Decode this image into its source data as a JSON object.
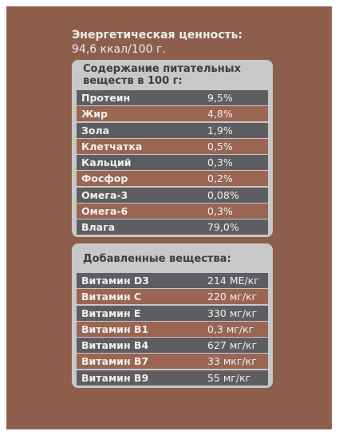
{
  "energy": {
    "title": "Энергетическая ценность:",
    "value": "94,6 ккал/100 г."
  },
  "nutrients": {
    "title": "Содержание питательных веществ в 100 г:",
    "rows": [
      {
        "name": "Протеин",
        "value": "9,5%"
      },
      {
        "name": "Жир",
        "value": "4,8%"
      },
      {
        "name": "Зола",
        "value": "1,9%"
      },
      {
        "name": "Клетчатка",
        "value": "0,5%"
      },
      {
        "name": "Кальций",
        "value": "0,3%"
      },
      {
        "name": "Фосфор",
        "value": "0,2%"
      },
      {
        "name": "Омега-3",
        "value": "0,08%"
      },
      {
        "name": "Омега-6",
        "value": "0,3%"
      },
      {
        "name": "Влага",
        "value": "79,0%"
      }
    ]
  },
  "additives": {
    "title": "Добавленные вещества:",
    "rows": [
      {
        "name": "Витамин D3",
        "value": "214 МЕ/кг"
      },
      {
        "name": "Витамин C",
        "value": "220 мг/кг"
      },
      {
        "name": "Витамин E",
        "value": "330 мг/кг"
      },
      {
        "name": "Витамин B1",
        "value": "0,3 мг/кг"
      },
      {
        "name": "Витамин B4",
        "value": "627 мг/кг"
      },
      {
        "name": "Витамин B7",
        "value": "33 мкг/кг"
      },
      {
        "name": "Витамин B9",
        "value": "55 мг/кг"
      }
    ]
  },
  "colors": {
    "background": "#8e5e4c",
    "panel": "#c8c8c8",
    "row_dark": "#5e5e62",
    "row_brown": "#9a6553"
  }
}
